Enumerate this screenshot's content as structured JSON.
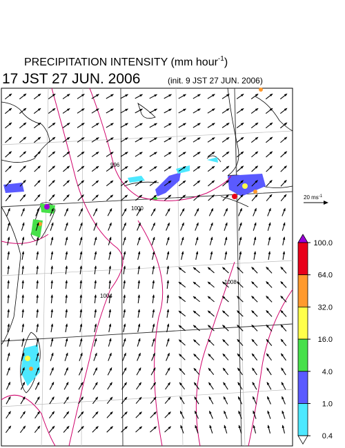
{
  "header": {
    "title": "PRECIPITATION INTENSITY (mm hour",
    "title_superscript": "-1",
    "title_close": ")",
    "valid_time": "17 JST 27 JUN. 2006",
    "init_time": "(init. 9 JST 27 JUN. 2006)"
  },
  "scale_arrow": {
    "label": "20 ms",
    "superscript": "-1"
  },
  "contour_labels": [
    "996",
    "1000",
    "1004",
    "1008"
  ],
  "legend": {
    "levels": [
      {
        "value": 100,
        "label": "100.0"
      },
      {
        "value": 64,
        "label": "64.0"
      },
      {
        "value": 32,
        "label": "32.0"
      },
      {
        "value": 16,
        "label": "16.0"
      },
      {
        "value": 4,
        "label": "4.0"
      },
      {
        "value": 1,
        "label": "1.0"
      },
      {
        "value": 0.4,
        "label": "0.4"
      }
    ],
    "colors": [
      "#9b00d9",
      "#e8001a",
      "#ff9a2e",
      "#ffff4a",
      "#47e04a",
      "#5a5aff",
      "#4de8ff",
      "#ffffff"
    ]
  }
}
